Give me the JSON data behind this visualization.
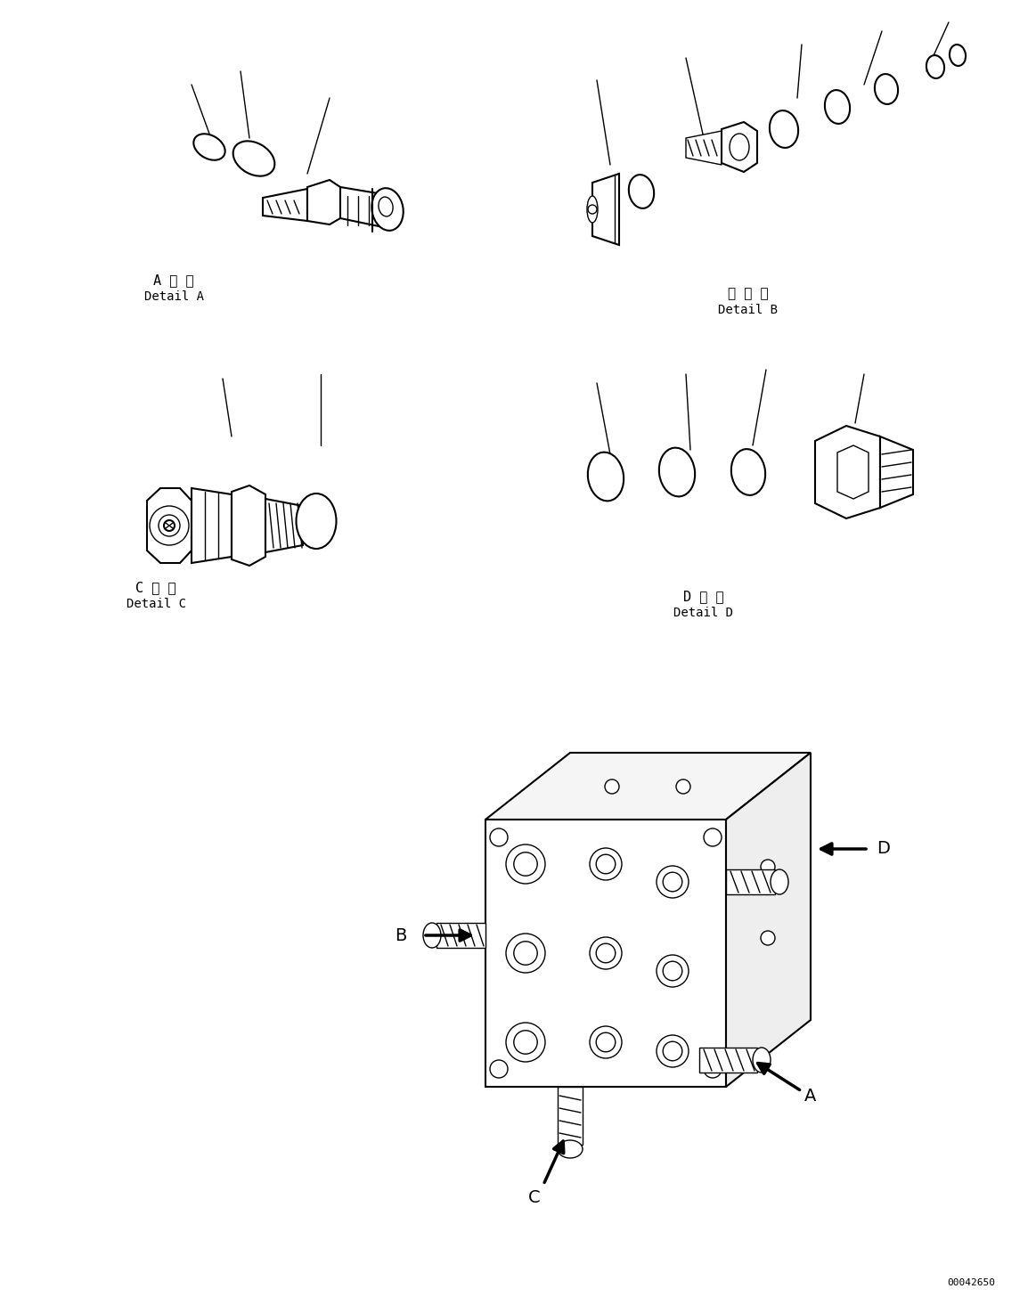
{
  "background_color": "#ffffff",
  "fig_width": 11.63,
  "fig_height": 14.56,
  "dpi": 100,
  "label_A_jp": "A 詳 細",
  "label_A_en": "Detail A",
  "label_B_jp": "日 詳 細",
  "label_B_en": "Detail B",
  "label_C_jp": "C 詳 細",
  "label_C_en": "Detail C",
  "label_D_jp": "D 詳 細",
  "label_D_en": "Detail D",
  "part_number": "00042650",
  "line_color": "#000000",
  "lw": 1.0,
  "lw_thick": 1.5,
  "font_size_label_jp": 11,
  "font_size_label_en": 10,
  "font_size_part": 8,
  "font_size_arrow_letter": 14
}
